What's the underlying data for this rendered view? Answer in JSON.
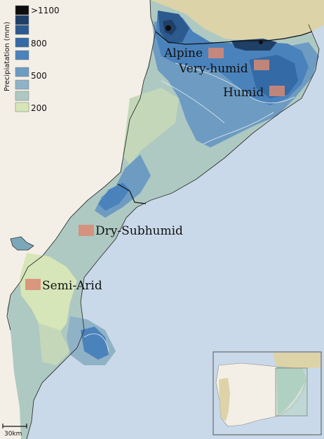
{
  "legend": {
    "title": "Precipiatation (mm)",
    "labels": [
      ">1100",
      "800",
      "500",
      "200"
    ],
    "colors": [
      "#0d0d0d",
      "#1f3f66",
      "#2c5a8f",
      "#346aa6",
      "#4a82bb",
      "#6d9bc2",
      "#8fb2c6",
      "#aec9c2",
      "#d6e6b8"
    ]
  },
  "climate_zones": [
    {
      "label": "Alpine",
      "marker_color": "#d98a72"
    },
    {
      "label": "Very-humid",
      "marker_color": "#d98a72"
    },
    {
      "label": "Humid",
      "marker_color": "#d98a72"
    },
    {
      "label": "Dry-Subhumid",
      "marker_color": "#d98a72"
    },
    {
      "label": "Semi-Arid",
      "marker_color": "#d98a72"
    }
  ],
  "scale_bar": {
    "label": "30km"
  },
  "colors": {
    "sea": "#c9d9e9",
    "spain_land": "#f4efe6",
    "france_land": "#ddd3a8",
    "inset_border": "#555555"
  }
}
